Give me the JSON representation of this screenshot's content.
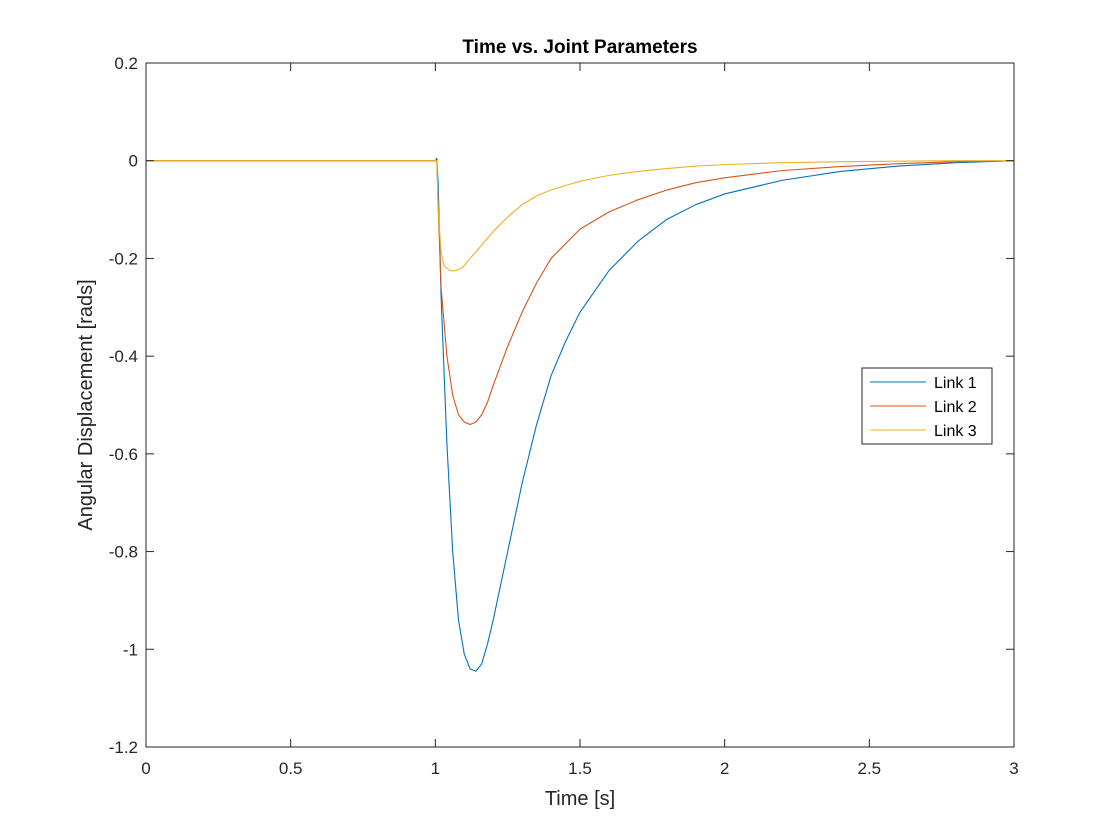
{
  "chart_data": {
    "type": "line",
    "title": "Time vs. Joint Parameters",
    "xlabel": "Time [s]",
    "ylabel": "Angular Displacement [rads]",
    "xlim": [
      0,
      3
    ],
    "ylim": [
      -1.2,
      0.2
    ],
    "xticks": [
      0,
      0.5,
      1,
      1.5,
      2,
      2.5,
      3
    ],
    "xtick_labels": [
      "0",
      "0.5",
      "1",
      "1.5",
      "2",
      "2.5",
      "3"
    ],
    "yticks": [
      -1.2,
      -1,
      -0.8,
      -0.6,
      -0.4,
      -0.2,
      0,
      0.2
    ],
    "ytick_labels": [
      "-1.2",
      "-1",
      "-0.8",
      "-0.6",
      "-0.4",
      "-0.2",
      "0",
      "0.2"
    ],
    "grid": false,
    "legend_position": "right",
    "series": [
      {
        "name": "Link 1",
        "color": "#0072BD",
        "x": [
          0,
          0.5,
          1.0,
          1.005,
          1.01,
          1.02,
          1.04,
          1.06,
          1.08,
          1.1,
          1.12,
          1.14,
          1.16,
          1.18,
          1.2,
          1.25,
          1.3,
          1.35,
          1.4,
          1.45,
          1.5,
          1.6,
          1.7,
          1.8,
          1.9,
          2.0,
          2.2,
          2.4,
          2.6,
          2.8,
          3.0
        ],
        "y": [
          0,
          0,
          0,
          0.005,
          -0.05,
          -0.28,
          -0.58,
          -0.8,
          -0.94,
          -1.01,
          -1.04,
          -1.045,
          -1.03,
          -0.99,
          -0.94,
          -0.8,
          -0.66,
          -0.54,
          -0.44,
          -0.37,
          -0.31,
          -0.225,
          -0.165,
          -0.12,
          -0.09,
          -0.068,
          -0.04,
          -0.022,
          -0.011,
          -0.004,
          0
        ]
      },
      {
        "name": "Link 2",
        "color": "#D95319",
        "x": [
          0,
          0.5,
          1.0,
          1.005,
          1.01,
          1.02,
          1.04,
          1.06,
          1.08,
          1.1,
          1.12,
          1.14,
          1.16,
          1.18,
          1.2,
          1.25,
          1.3,
          1.35,
          1.4,
          1.5,
          1.6,
          1.7,
          1.8,
          1.9,
          2.0,
          2.2,
          2.4,
          2.6,
          2.8,
          3.0
        ],
        "y": [
          0,
          0,
          0,
          0,
          -0.1,
          -0.26,
          -0.4,
          -0.48,
          -0.52,
          -0.535,
          -0.54,
          -0.535,
          -0.52,
          -0.495,
          -0.46,
          -0.38,
          -0.31,
          -0.25,
          -0.2,
          -0.14,
          -0.105,
          -0.08,
          -0.06,
          -0.045,
          -0.035,
          -0.02,
          -0.012,
          -0.006,
          -0.002,
          0
        ]
      },
      {
        "name": "Link 3",
        "color": "#EDB120",
        "x": [
          0,
          0.5,
          1.0,
          1.005,
          1.01,
          1.02,
          1.03,
          1.05,
          1.07,
          1.09,
          1.1,
          1.12,
          1.15,
          1.2,
          1.25,
          1.3,
          1.35,
          1.4,
          1.5,
          1.6,
          1.7,
          1.8,
          1.9,
          2.0,
          2.2,
          2.4,
          2.6,
          2.8,
          3.0
        ],
        "y": [
          0,
          0,
          0,
          0,
          -0.1,
          -0.19,
          -0.215,
          -0.225,
          -0.225,
          -0.22,
          -0.215,
          -0.2,
          -0.18,
          -0.145,
          -0.115,
          -0.09,
          -0.072,
          -0.06,
          -0.042,
          -0.03,
          -0.022,
          -0.016,
          -0.011,
          -0.008,
          -0.004,
          -0.002,
          -0.001,
          0,
          0
        ]
      }
    ]
  }
}
